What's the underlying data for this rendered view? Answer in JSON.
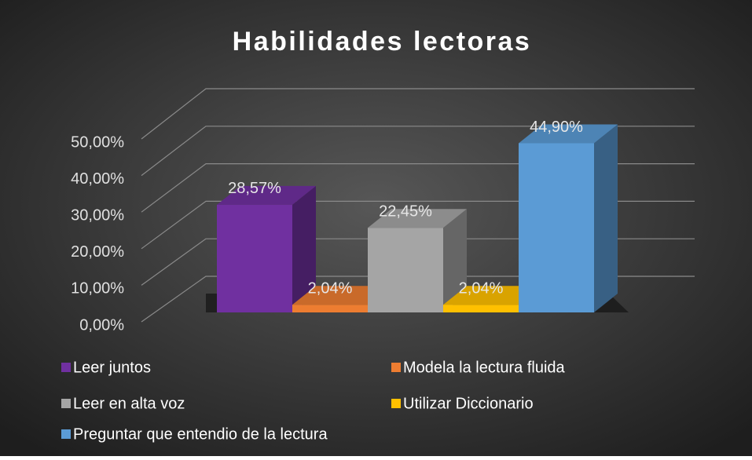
{
  "chart_data": {
    "type": "bar3d",
    "title": "Habilidades lectoras",
    "series": [
      {
        "name": "Leer juntos",
        "color": "#7030a0",
        "values": [
          28.57
        ],
        "value_labels": [
          "28,57%"
        ]
      },
      {
        "name": "Modela la lectura fluida",
        "color": "#ed7d31",
        "values": [
          2.04
        ],
        "value_labels": [
          "2,04%"
        ]
      },
      {
        "name": "Leer en alta voz",
        "color": "#a5a5a5",
        "values": [
          22.45
        ],
        "value_labels": [
          "22,45%"
        ]
      },
      {
        "name": "Utilizar Diccionario",
        "color": "#ffc000",
        "values": [
          2.04
        ],
        "value_labels": [
          "2,04%"
        ]
      },
      {
        "name": "Preguntar que entendio de la lectura",
        "color": "#5b9bd5",
        "values": [
          44.9
        ],
        "value_labels": [
          "44,90%"
        ]
      }
    ],
    "ylim": [
      0,
      50
    ],
    "yticks": [
      {
        "value": 0,
        "label": "0,00%"
      },
      {
        "value": 10,
        "label": "10,00%"
      },
      {
        "value": 20,
        "label": "20,00%"
      },
      {
        "value": 30,
        "label": "30,00%"
      },
      {
        "value": 40,
        "label": "40,00%"
      },
      {
        "value": 50,
        "label": "50,00%"
      }
    ],
    "grid": true
  }
}
